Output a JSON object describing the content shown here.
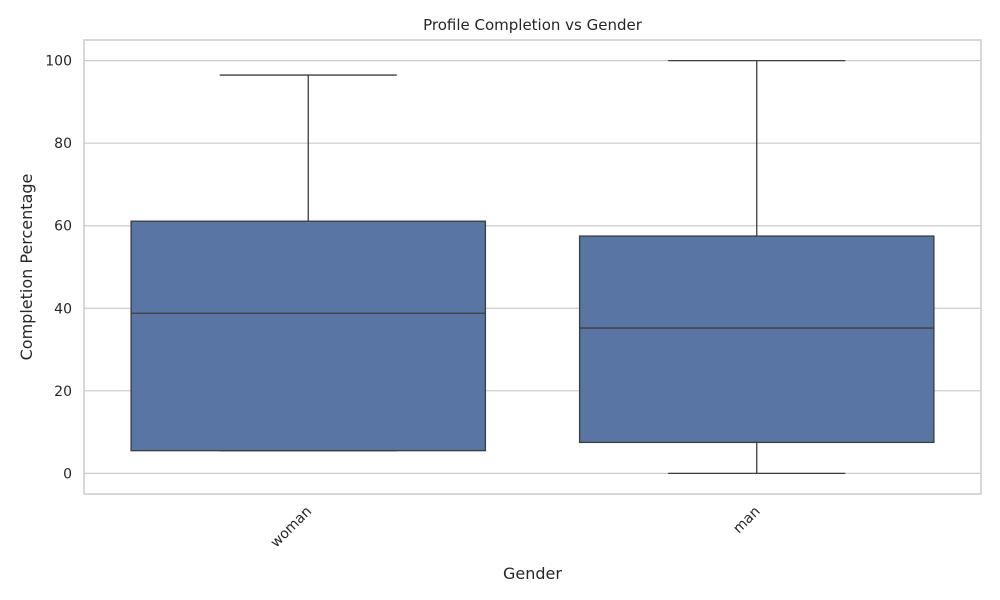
{
  "chart_data": {
    "type": "box",
    "title": "Profile Completion vs Gender",
    "xlabel": "Gender",
    "ylabel": "Completion Percentage",
    "categories": [
      "woman",
      "man"
    ],
    "boxes": [
      {
        "category": "woman",
        "whisker_low": 5.5,
        "q1": 5.5,
        "median": 38.8,
        "q3": 61.1,
        "whisker_high": 96.5
      },
      {
        "category": "man",
        "whisker_low": 0,
        "q1": 7.5,
        "median": 35.2,
        "q3": 57.5,
        "whisker_high": 100
      }
    ],
    "yticks": [
      0,
      20,
      40,
      60,
      80,
      100
    ],
    "ylim": [
      -5,
      105
    ],
    "grid": true,
    "box_color": "#5875a4",
    "line_color": "#3d3d3d"
  }
}
